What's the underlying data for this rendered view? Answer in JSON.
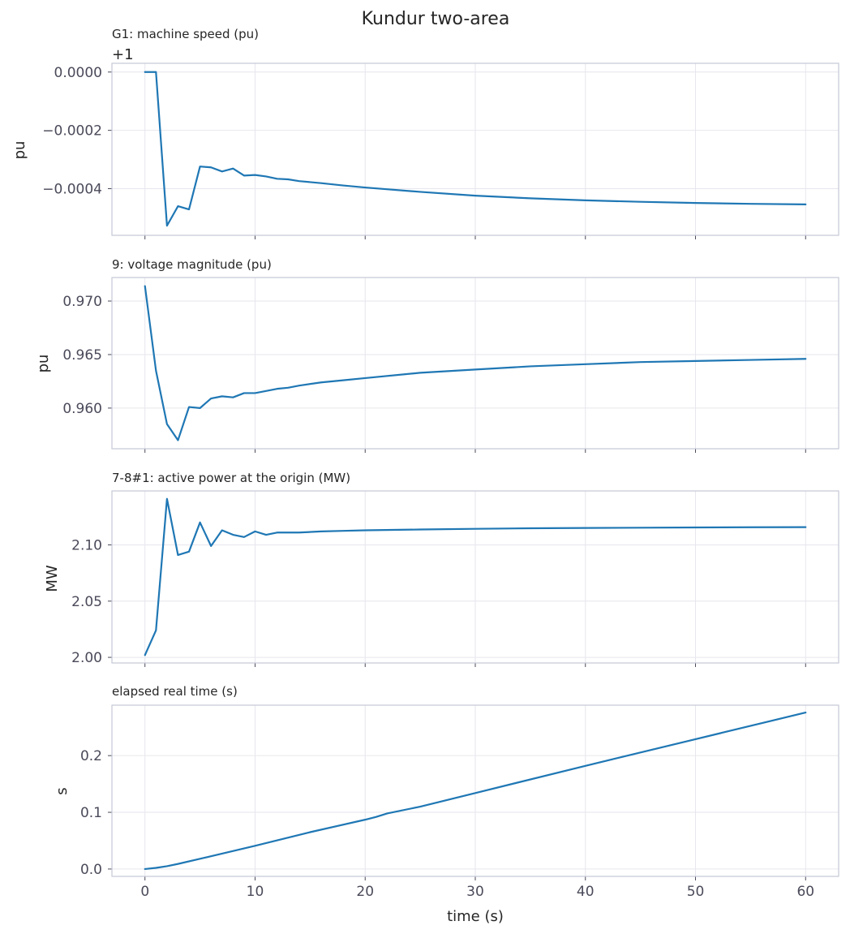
{
  "figure": {
    "title": "Kundur two-area",
    "xlabel": "time (s)",
    "line_color": "#1f77b4",
    "grid_color": "#e6e6ee",
    "frame_color": "#c5c9d6"
  },
  "chart_data": [
    {
      "type": "line",
      "title": "G1: machine speed (pu)",
      "ylabel": "pu",
      "offset_label": "+1",
      "grid": true,
      "xlim": [
        -3,
        63
      ],
      "ylim": [
        -0.00056,
        3e-05
      ],
      "xticks": [
        0,
        10,
        20,
        30,
        40,
        50,
        60
      ],
      "yticks": [
        0,
        -0.0002,
        -0.0004
      ],
      "ytick_labels": [
        "0.0000",
        "−0.0002",
        "−0.0004"
      ],
      "x": [
        0,
        1,
        2,
        3,
        4,
        5,
        6,
        7,
        8,
        9,
        10,
        11,
        12,
        13,
        14,
        16,
        18,
        20,
        25,
        30,
        35,
        40,
        45,
        50,
        55,
        60
      ],
      "y": [
        0,
        0,
        -0.000527,
        -0.00046,
        -0.000471,
        -0.000324,
        -0.000327,
        -0.000341,
        -0.000331,
        -0.000355,
        -0.000353,
        -0.000358,
        -0.000366,
        -0.000368,
        -0.000374,
        -0.000381,
        -0.000389,
        -0.000396,
        -0.000411,
        -0.000424,
        -0.000433,
        -0.00044,
        -0.000445,
        -0.000449,
        -0.000452,
        -0.000454
      ]
    },
    {
      "type": "line",
      "title": "9: voltage magnitude (pu)",
      "ylabel": "pu",
      "grid": true,
      "xlim": [
        -3,
        63
      ],
      "ylim": [
        0.9562,
        0.9722
      ],
      "xticks": [
        0,
        10,
        20,
        30,
        40,
        50,
        60
      ],
      "yticks": [
        0.97,
        0.965,
        0.96
      ],
      "ytick_labels": [
        "0.970",
        "0.965",
        "0.960"
      ],
      "x": [
        0,
        1,
        2,
        3,
        4,
        5,
        6,
        7,
        8,
        9,
        10,
        11,
        12,
        13,
        14,
        16,
        18,
        20,
        25,
        30,
        35,
        40,
        45,
        50,
        55,
        60
      ],
      "y": [
        0.9714,
        0.9635,
        0.9585,
        0.957,
        0.9601,
        0.96,
        0.9609,
        0.9611,
        0.961,
        0.9614,
        0.9614,
        0.9616,
        0.9618,
        0.9619,
        0.9621,
        0.9624,
        0.9626,
        0.9628,
        0.9633,
        0.9636,
        0.9639,
        0.9641,
        0.9643,
        0.9644,
        0.9645,
        0.9646
      ]
    },
    {
      "type": "line",
      "title": "7-8#1: active power at the origin (MW)",
      "ylabel": "MW",
      "grid": true,
      "xlim": [
        -3,
        63
      ],
      "ylim": [
        1.995,
        2.148
      ],
      "xticks": [
        0,
        10,
        20,
        30,
        40,
        50,
        60
      ],
      "yticks": [
        2.1,
        2.05,
        2.0
      ],
      "ytick_labels": [
        "2.10",
        "2.05",
        "2.00"
      ],
      "x": [
        0,
        1,
        2,
        3,
        4,
        5,
        6,
        7,
        8,
        9,
        10,
        11,
        12,
        13,
        14,
        16,
        18,
        20,
        25,
        30,
        35,
        40,
        45,
        50,
        55,
        60
      ],
      "y": [
        2.002,
        2.024,
        2.141,
        2.091,
        2.094,
        2.12,
        2.099,
        2.113,
        2.109,
        2.107,
        2.112,
        2.109,
        2.111,
        2.111,
        2.111,
        2.112,
        2.1125,
        2.113,
        2.1137,
        2.1143,
        2.1148,
        2.1151,
        2.1153,
        2.1155,
        2.1157,
        2.1158
      ]
    },
    {
      "type": "line",
      "title": "elapsed real time (s)",
      "ylabel": "s",
      "xlabel": "time (s)",
      "grid": true,
      "xlim": [
        -3,
        63
      ],
      "ylim": [
        -0.013,
        0.289
      ],
      "xticks": [
        0,
        10,
        20,
        30,
        40,
        50,
        60
      ],
      "xtick_labels": [
        "0",
        "10",
        "20",
        "30",
        "40",
        "50",
        "60"
      ],
      "yticks": [
        0.2,
        0.1,
        0.0
      ],
      "ytick_labels": [
        "0.2",
        "0.1",
        "0.0"
      ],
      "x": [
        0,
        1,
        2,
        3,
        5,
        10,
        15,
        20,
        21,
        22,
        25,
        30,
        40,
        50,
        60
      ],
      "y": [
        0,
        0.002,
        0.005,
        0.009,
        0.018,
        0.041,
        0.065,
        0.087,
        0.092,
        0.098,
        0.11,
        0.134,
        0.182,
        0.229,
        0.276
      ]
    }
  ]
}
